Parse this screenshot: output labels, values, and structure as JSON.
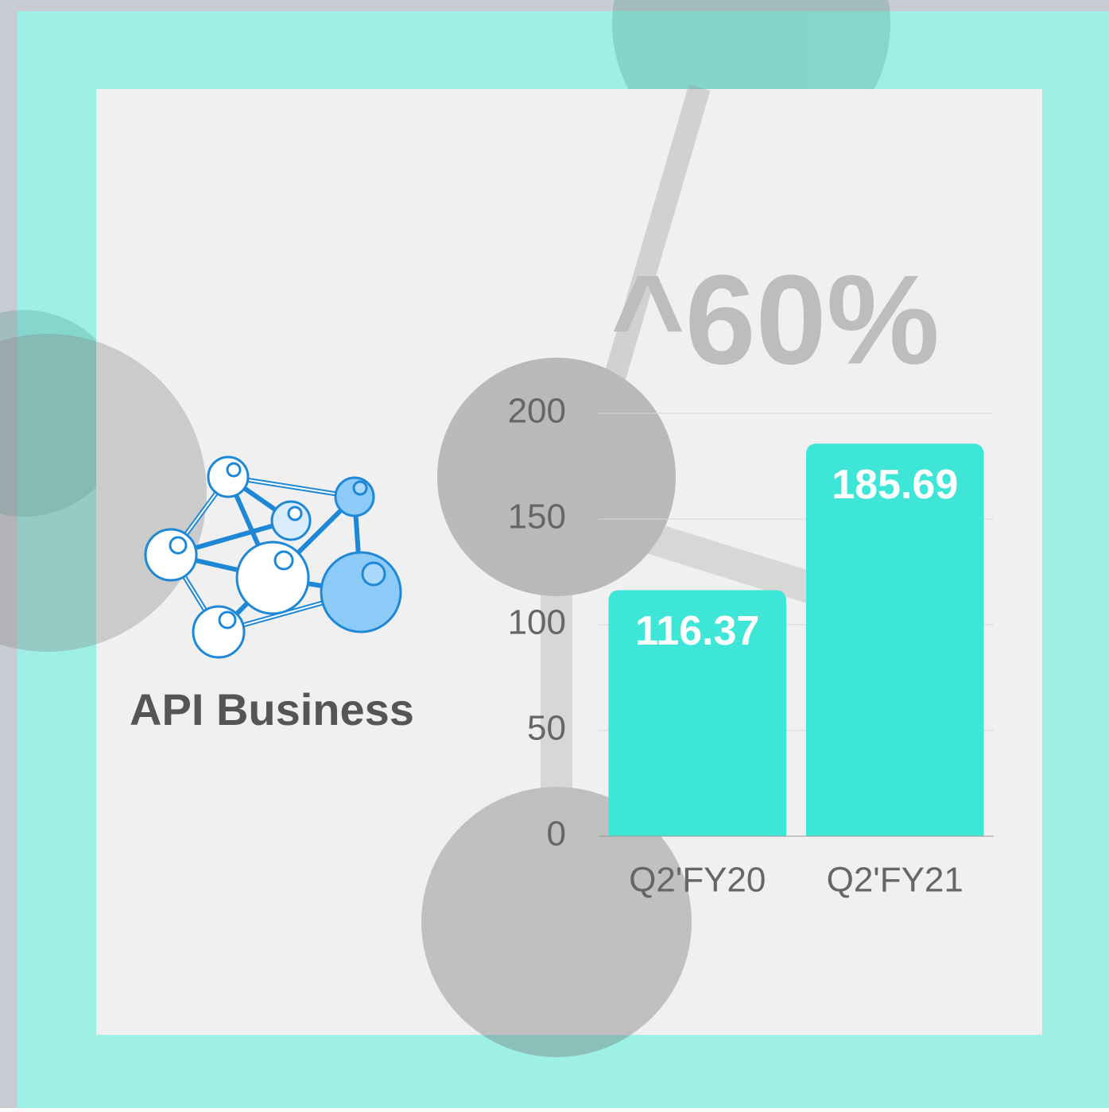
{
  "chart_data": {
    "type": "bar",
    "title": "API Business",
    "annotation": "^60%",
    "categories": [
      "Q2'FY20",
      "Q2'FY21"
    ],
    "values": [
      116.37,
      185.69
    ],
    "color": "#3de6d6",
    "ylim": [
      0,
      200
    ],
    "yticks": [
      0,
      50,
      100,
      150,
      200
    ],
    "grid": true
  }
}
